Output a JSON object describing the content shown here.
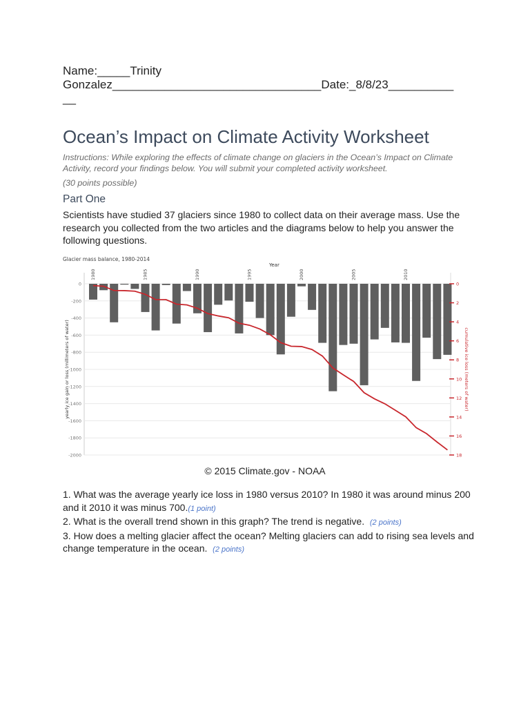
{
  "header": {
    "name_line1": "Name:_____Trinity",
    "name_line2": "Gonzalez________________________________Date:_8/8/23__________",
    "name_line3": "__"
  },
  "title": "Ocean’s Impact on Climate Activity Worksheet",
  "instructions": "Instructions: While exploring the effects of climate change on glaciers in the Ocean’s Impact on Climate Activity, record your findings below. You will submit your completed activity worksheet.",
  "points_possible": "(30 points possible)",
  "part_one": {
    "heading": "Part One",
    "intro": "Scientists have studied 37 glaciers since 1980 to collect data on their average mass. Use the research you collected from the two articles and the diagrams below to help you answer the following questions."
  },
  "chart_data": {
    "type": "bar+line",
    "title": "Glacier mass balance, 1980-2014",
    "xlabel": "Year",
    "ylabel": "yearly ice gain or loss (millimeters of water)",
    "y2label": "cumulative ice loss (meters of water)",
    "x_tick_labels": [
      "1980",
      "1985",
      "1990",
      "1995",
      "2000",
      "2005",
      "2010"
    ],
    "ylim": [
      -2000,
      0
    ],
    "y_ticks": [
      "0",
      "-200",
      "-400",
      "-600",
      "-800",
      "-1000",
      "-1200",
      "-1400",
      "-1600",
      "-1800",
      "-2000"
    ],
    "y2lim": [
      0,
      18
    ],
    "y2_ticks": [
      "0",
      "2",
      "4",
      "6",
      "8",
      "10",
      "12",
      "14",
      "16",
      "18"
    ],
    "grid": true,
    "colors": {
      "bars": "#5f5f5f",
      "line": "#c8262c"
    },
    "years": [
      1980,
      1981,
      1982,
      1983,
      1984,
      1985,
      1986,
      1987,
      1988,
      1989,
      1990,
      1991,
      1992,
      1993,
      1994,
      1995,
      1996,
      1997,
      1998,
      1999,
      2000,
      2001,
      2002,
      2003,
      2004,
      2005,
      2006,
      2007,
      2008,
      2009,
      2010,
      2011,
      2012,
      2013,
      2014
    ],
    "series": [
      {
        "values": [
          -185,
          -75,
          -450,
          -10,
          -60,
          -330,
          -545,
          -15,
          -465,
          -85,
          -345,
          -565,
          -245,
          -195,
          -580,
          -210,
          -400,
          -600,
          -825,
          -385,
          -30,
          -305,
          -690,
          -1255,
          -715,
          -700,
          -1185,
          -650,
          -515,
          -685,
          -690,
          -1135,
          -630,
          -880,
          -830
        ]
      },
      {
        "axis": "right",
        "values": [
          0.19,
          0.26,
          0.71,
          0.72,
          0.78,
          1.11,
          1.66,
          1.67,
          2.14,
          2.22,
          2.57,
          3.13,
          3.38,
          3.57,
          4.15,
          4.36,
          4.76,
          5.36,
          6.19,
          6.57,
          6.6,
          6.91,
          7.6,
          8.85,
          9.57,
          10.27,
          11.45,
          12.1,
          12.62,
          13.3,
          13.99,
          15.13,
          15.76,
          16.64,
          17.47
        ]
      }
    ]
  },
  "credit": "© 2015 Climate.gov - NOAA",
  "questions": [
    {
      "text": "1. What was the average yearly ice loss in 1980 versus 2010? In 1980 it was around minus 200 and it 2010 it was minus 700.",
      "points": "(1 point)"
    },
    {
      "text": "2. What is the overall trend shown in this graph? The trend is negative.",
      "points": "(2 points)"
    },
    {
      "text": "3. How does a melting glacier affect the ocean? Melting glaciers can add to rising sea levels and change temperature in the ocean.",
      "points": "(2 points)"
    }
  ]
}
